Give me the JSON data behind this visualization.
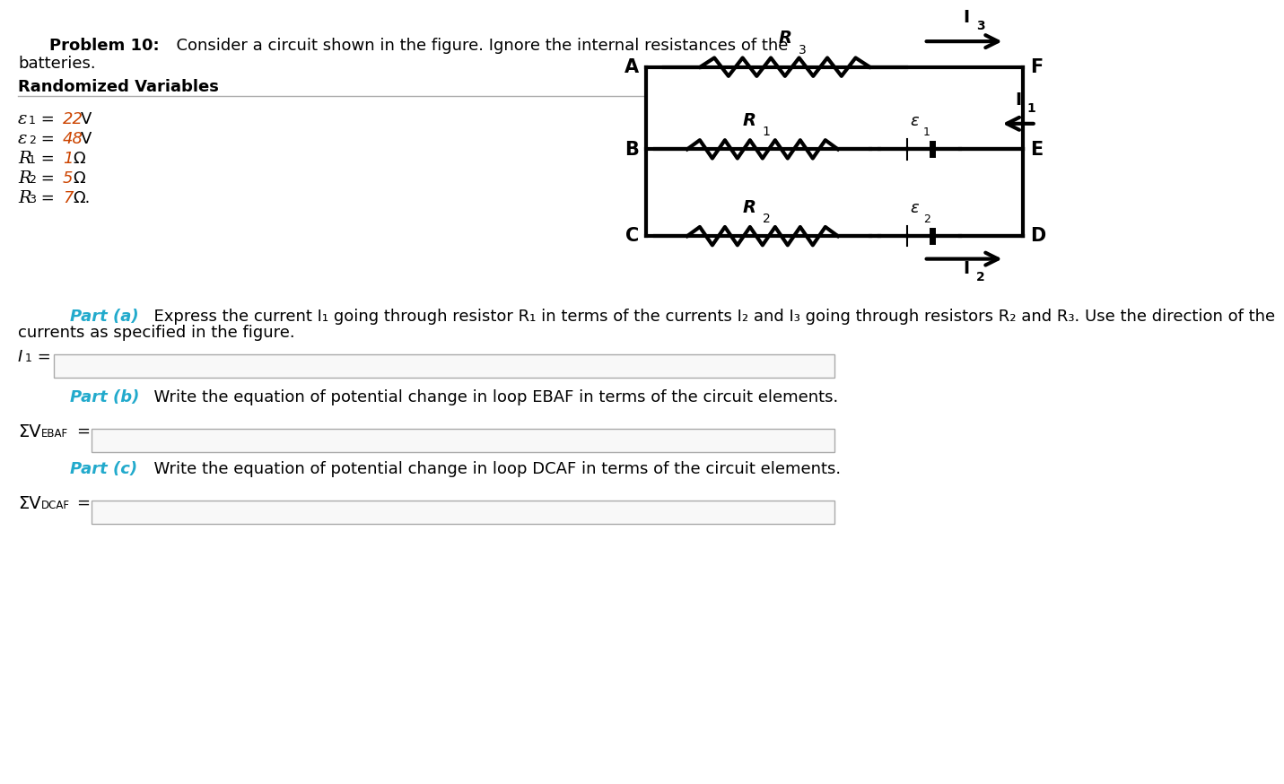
{
  "bg_color": "#ffffff",
  "text_color": "#000000",
  "highlight_color": "#22aacc",
  "value_color": "#cc4400",
  "title_bold": "Problem 10:",
  "title_rest": "  Consider a circuit shown in the figure. Ignore the internal resistances of the",
  "title_line2": "batteries.",
  "section_label": "Randomized Variables",
  "var_data": [
    [
      "E",
      "1",
      " = ",
      "22",
      " V"
    ],
    [
      "E",
      "2",
      " = ",
      "48",
      " V"
    ],
    [
      "R",
      "1",
      " = ",
      "1",
      " Ω"
    ],
    [
      "R",
      "2",
      " = ",
      "5",
      " Ω"
    ],
    [
      "R",
      "3",
      " = ",
      "7",
      " Ω."
    ]
  ],
  "part_a_label": "Part (a)",
  "part_a_text": "  Express the current I₁ going through resistor R₁ in terms of the currents I₂ and I₃ going through resistors R₂ and R₃. Use the direction of the",
  "part_a_text2": "currents as specified in the figure.",
  "part_b_label": "Part (b)",
  "part_b_text": "  Write the equation of potential change in loop EBAF in terms of the circuit elements.",
  "part_c_label": "Part (c)",
  "part_c_text": "  Write the equation of potential change in loop DCAF in terms of the circuit elements."
}
